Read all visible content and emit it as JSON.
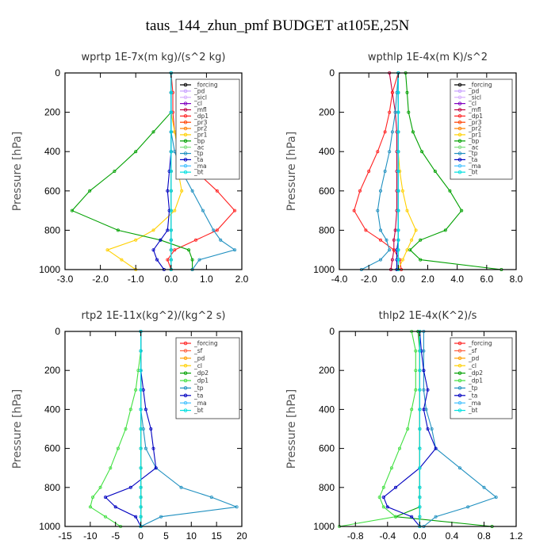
{
  "title": "taus_144_zhun_pmf  BUDGET at105E,25N",
  "chart_data": [
    {
      "type": "line",
      "title": "wprtp   1E-7x(m kg)/(s^2 kg)",
      "ylabel": "Pressure [hPa]",
      "xlim": [
        -3.0,
        2.0
      ],
      "ylim": [
        1000,
        0
      ],
      "xticks": [
        "-3.0",
        "-2.0",
        "-1.0",
        "0.0",
        "1.0",
        "2.0"
      ],
      "yticks": [
        "0",
        "200",
        "400",
        "600",
        "800",
        "1000"
      ],
      "y": [
        0,
        100,
        200,
        300,
        400,
        500,
        600,
        700,
        800,
        850,
        900,
        950,
        1000
      ],
      "series": [
        {
          "name": "_forcing",
          "color": "#000000",
          "values": [
            0,
            0,
            0,
            0,
            0,
            0,
            0,
            0,
            0,
            0,
            0,
            0,
            0
          ]
        },
        {
          "name": "_pd",
          "color": "#c8a0ff",
          "values": [
            0,
            0,
            0,
            0,
            0,
            0,
            0,
            0,
            0,
            0,
            0,
            0,
            0
          ]
        },
        {
          "name": "_sicl",
          "color": "#d8b0ff",
          "values": [
            0,
            0,
            0,
            0,
            0,
            0,
            0,
            0,
            0,
            0,
            0,
            0,
            0
          ]
        },
        {
          "name": "_cl",
          "color": "#8000c0",
          "values": [
            0,
            0,
            0,
            0,
            0,
            0,
            0,
            0,
            0,
            0,
            0,
            0,
            0
          ]
        },
        {
          "name": "_mfl",
          "color": "#c00040",
          "values": [
            0,
            0,
            0,
            0,
            0,
            0,
            0,
            0,
            0,
            0,
            0,
            0,
            0
          ]
        },
        {
          "name": "_dp1",
          "color": "#ff2020",
          "values": [
            0,
            0.05,
            0.05,
            0.1,
            0.3,
            0.7,
            1.3,
            1.8,
            1.3,
            0.7,
            0.1,
            -0.1,
            0
          ]
        },
        {
          "name": "_pr3",
          "color": "#ff4000",
          "values": [
            0,
            0,
            0,
            0,
            0,
            0,
            0,
            0,
            0,
            0,
            0,
            0,
            0
          ]
        },
        {
          "name": "_pr2",
          "color": "#ff8000",
          "values": [
            0,
            0,
            0,
            0,
            0,
            0,
            0,
            0,
            0,
            0,
            0,
            0,
            0
          ]
        },
        {
          "name": "_pr1",
          "color": "#ffd000",
          "values": [
            0,
            0,
            0,
            0.1,
            0.2,
            0.2,
            0.3,
            0.1,
            -0.5,
            -1.0,
            -1.8,
            -1.4,
            -1.0
          ]
        },
        {
          "name": "_bp",
          "color": "#00a000",
          "values": [
            0,
            0,
            0,
            -0.5,
            -1.0,
            -1.6,
            -2.3,
            -2.8,
            -1.5,
            -0.3,
            0.5,
            0.6,
            0.6
          ]
        },
        {
          "name": "_ac",
          "color": "#80e080",
          "values": [
            0,
            0,
            0,
            0,
            0,
            0,
            0,
            0,
            0,
            0,
            0,
            0,
            0
          ]
        },
        {
          "name": "_tp",
          "color": "#2090c0",
          "values": [
            0,
            0,
            0,
            0,
            0.1,
            0.3,
            0.6,
            0.9,
            1.2,
            1.4,
            1.8,
            0.8,
            0.6
          ]
        },
        {
          "name": "_ta",
          "color": "#0000c0",
          "values": [
            0,
            0,
            0,
            0,
            0,
            -0.05,
            -0.1,
            -0.05,
            -0.1,
            -0.3,
            -0.5,
            -0.4,
            -0.2
          ]
        },
        {
          "name": "_ma",
          "color": "#40c0ff",
          "values": [
            0,
            0,
            0,
            0,
            0,
            0,
            0,
            0,
            0,
            0,
            0,
            0,
            0
          ]
        },
        {
          "name": "_bt",
          "color": "#00e0e0",
          "values": [
            0,
            0,
            0,
            0,
            0,
            0,
            0,
            0,
            0,
            0,
            0,
            0,
            0
          ]
        }
      ]
    },
    {
      "type": "line",
      "title": "wpthlp   1E-4x(m K)/s^2",
      "ylabel": "Pressure [hPa]",
      "xlim": [
        -4.0,
        8.0
      ],
      "ylim": [
        1000,
        0
      ],
      "xticks": [
        "-4.0",
        "-2.0",
        "0.0",
        "2.0",
        "4.0",
        "6.0",
        "8.0"
      ],
      "yticks": [
        "0",
        "200",
        "400",
        "600",
        "800",
        "1000"
      ],
      "y": [
        0,
        100,
        200,
        300,
        400,
        500,
        600,
        700,
        800,
        850,
        900,
        950,
        1000
      ],
      "series": [
        {
          "name": "_forcing",
          "color": "#000000",
          "values": [
            0,
            0,
            0,
            0,
            0,
            0,
            0,
            0,
            0,
            0,
            0,
            0,
            0
          ]
        },
        {
          "name": "_pd",
          "color": "#c8a0ff",
          "values": [
            0,
            0,
            0,
            0,
            0,
            0,
            0,
            0,
            0,
            0,
            0,
            0,
            0
          ]
        },
        {
          "name": "_sicl",
          "color": "#d8b0ff",
          "values": [
            0,
            0,
            0,
            0,
            0,
            0,
            0,
            0,
            0,
            0,
            0,
            0,
            0
          ]
        },
        {
          "name": "_cl",
          "color": "#8000c0",
          "values": [
            0,
            0,
            0,
            0,
            0,
            0,
            0,
            0,
            0,
            0,
            0,
            0,
            0
          ]
        },
        {
          "name": "_mfl",
          "color": "#c00040",
          "values": [
            -0.6,
            -0.4,
            -0.2,
            -0.1,
            -0.1,
            -0.1,
            -0.1,
            -0.1,
            -0.2,
            -0.3,
            -0.3,
            -0.4,
            -0.5
          ]
        },
        {
          "name": "_dp1",
          "color": "#ff2020",
          "values": [
            0,
            -0.4,
            -0.6,
            -0.9,
            -1.4,
            -2.0,
            -2.6,
            -3.0,
            -2.2,
            -1.2,
            -0.3,
            0.1,
            0.2
          ]
        },
        {
          "name": "_pr3",
          "color": "#ff4000",
          "values": [
            0,
            0,
            0,
            0,
            0,
            0,
            0,
            0,
            0,
            0,
            0,
            0,
            0
          ]
        },
        {
          "name": "_pr2",
          "color": "#ff8000",
          "values": [
            0,
            0,
            0,
            0,
            0,
            0,
            0,
            0,
            0,
            0,
            0,
            0,
            0
          ]
        },
        {
          "name": "_pr1",
          "color": "#ffd000",
          "values": [
            0,
            0,
            0,
            0,
            0,
            0.1,
            0.3,
            0.6,
            1.2,
            0.9,
            0.6,
            0.3,
            0
          ]
        },
        {
          "name": "_bp",
          "color": "#00a000",
          "values": [
            0.5,
            0.6,
            0.7,
            1.0,
            1.6,
            2.5,
            3.5,
            4.3,
            3.2,
            1.5,
            0.8,
            1.5,
            7.0
          ]
        },
        {
          "name": "_ac",
          "color": "#80e080",
          "values": [
            0,
            0,
            0,
            0,
            0,
            0,
            0,
            0,
            0,
            0,
            0,
            0,
            0
          ]
        },
        {
          "name": "_tp",
          "color": "#2090c0",
          "values": [
            0,
            -0.1,
            -0.2,
            -0.4,
            -0.6,
            -0.9,
            -1.2,
            -1.4,
            -1.2,
            -0.8,
            -0.6,
            -1.2,
            -2.5
          ]
        },
        {
          "name": "_ta",
          "color": "#0000c0",
          "values": [
            0,
            0,
            0,
            0,
            0,
            0,
            0,
            0,
            0,
            0,
            -0.1,
            -0.1,
            -0.1
          ]
        },
        {
          "name": "_ma",
          "color": "#40c0ff",
          "values": [
            0,
            0,
            0,
            0,
            0,
            0,
            0,
            0,
            0,
            0,
            0,
            0,
            0
          ]
        },
        {
          "name": "_bt",
          "color": "#00e0e0",
          "values": [
            0,
            0,
            0,
            0,
            0,
            0,
            0,
            0,
            0,
            0,
            0,
            0,
            0
          ]
        }
      ]
    },
    {
      "type": "line",
      "title": "rtp2   1E-11x(kg^2)/(kg^2 s)",
      "ylabel": "Pressure [hPa]",
      "xlim": [
        -15,
        20
      ],
      "ylim": [
        1000,
        0
      ],
      "xticks": [
        "-15",
        "-10",
        "-5",
        "0",
        "5",
        "10",
        "15",
        "20"
      ],
      "yticks": [
        "0",
        "200",
        "400",
        "600",
        "800",
        "1000"
      ],
      "y": [
        0,
        100,
        200,
        300,
        400,
        500,
        600,
        700,
        800,
        850,
        900,
        950,
        1000
      ],
      "series": [
        {
          "name": "_forcing",
          "color": "#ff2020",
          "values": [
            0,
            0,
            0,
            0,
            0,
            0,
            0,
            0,
            0,
            0,
            0,
            0,
            0
          ]
        },
        {
          "name": "_sf",
          "color": "#ff6040",
          "values": [
            0,
            0,
            0,
            0,
            0,
            0,
            0,
            0,
            0,
            0,
            0,
            0,
            0
          ]
        },
        {
          "name": "_pd",
          "color": "#ffa000",
          "values": [
            0,
            0,
            0,
            0,
            0,
            0,
            0,
            0,
            0,
            0,
            0,
            0,
            0
          ]
        },
        {
          "name": "_cl",
          "color": "#ffd000",
          "values": [
            0,
            0,
            0,
            0,
            0,
            0,
            0,
            0,
            0,
            0,
            0,
            0,
            0
          ]
        },
        {
          "name": "_dp2",
          "color": "#00a000",
          "values": [
            0,
            0,
            0,
            0,
            0,
            0,
            0,
            0,
            0,
            0,
            0,
            0,
            0
          ]
        },
        {
          "name": "_dp1",
          "color": "#40e040",
          "values": [
            0,
            0,
            -0.5,
            -1,
            -2,
            -3,
            -4.5,
            -6,
            -8,
            -9.5,
            -10,
            -7,
            -4
          ]
        },
        {
          "name": "_tp",
          "color": "#2090c0",
          "values": [
            0,
            0,
            0,
            0,
            0,
            0.5,
            1,
            3,
            8,
            14,
            19,
            4,
            0
          ]
        },
        {
          "name": "_ta",
          "color": "#0000c0",
          "values": [
            0,
            0,
            0,
            0.5,
            1,
            2,
            2.5,
            3,
            -2,
            -7,
            -5,
            -1,
            0
          ]
        },
        {
          "name": "_ma",
          "color": "#40c0ff",
          "values": [
            0,
            0,
            0,
            0,
            0,
            0,
            0,
            0,
            0,
            0,
            0,
            0,
            0
          ]
        },
        {
          "name": "_bt",
          "color": "#00e0e0",
          "values": [
            0,
            0,
            0,
            0,
            0,
            0,
            0,
            0,
            0,
            0,
            0,
            0,
            0
          ]
        }
      ]
    },
    {
      "type": "line",
      "title": "thlp2   1E-4x(K^2)/s",
      "ylabel": "Pressure [hPa]",
      "xlim": [
        -1.0,
        1.2
      ],
      "ylim": [
        1000,
        0
      ],
      "xticks": [
        "-0.8",
        "-0.4",
        "0.0",
        "0.4",
        "0.8",
        "1.2"
      ],
      "yticks": [
        "0",
        "200",
        "400",
        "600",
        "800",
        "1000"
      ],
      "y": [
        0,
        100,
        200,
        300,
        400,
        500,
        600,
        700,
        800,
        850,
        900,
        950,
        1000
      ],
      "series": [
        {
          "name": "_forcing",
          "color": "#ff2020",
          "values": [
            0,
            0,
            0,
            0,
            0,
            0,
            0,
            0,
            0,
            0,
            0,
            0,
            0
          ]
        },
        {
          "name": "_sf",
          "color": "#ff6040",
          "values": [
            0,
            0,
            0,
            0,
            0,
            0,
            0,
            0,
            0,
            0,
            0,
            0,
            0
          ]
        },
        {
          "name": "_pd",
          "color": "#ffa000",
          "values": [
            0,
            0,
            0,
            0,
            0,
            0,
            0,
            0,
            0,
            0,
            0,
            0,
            0
          ]
        },
        {
          "name": "_cl",
          "color": "#ffd000",
          "values": [
            0,
            0,
            0,
            0,
            0,
            0,
            0,
            0,
            0,
            0,
            0,
            0,
            0
          ]
        },
        {
          "name": "_dp2",
          "color": "#00a000",
          "values": [
            -0.02,
            0,
            0,
            0,
            0,
            0,
            0,
            0,
            0,
            0,
            0,
            -0.3,
            0.9
          ]
        },
        {
          "name": "_dp1",
          "color": "#40e040",
          "values": [
            -0.1,
            -0.05,
            -0.05,
            -0.05,
            -0.1,
            -0.15,
            -0.25,
            -0.35,
            -0.45,
            -0.5,
            -0.45,
            -0.3,
            -1.0
          ]
        },
        {
          "name": "_tp",
          "color": "#2090c0",
          "values": [
            0.05,
            0.05,
            0.05,
            0.05,
            0.08,
            0.15,
            0.2,
            0.5,
            0.8,
            0.95,
            0.6,
            0.2,
            0.05
          ]
        },
        {
          "name": "_ta",
          "color": "#0000c0",
          "values": [
            0,
            0.02,
            0.05,
            0.1,
            0.05,
            0.1,
            0.2,
            0,
            -0.3,
            -0.45,
            -0.4,
            -0.1,
            0
          ]
        },
        {
          "name": "_ma",
          "color": "#40c0ff",
          "values": [
            0,
            0,
            0,
            0,
            0,
            0,
            0,
            0,
            0,
            0,
            0,
            0,
            0
          ]
        },
        {
          "name": "_bt",
          "color": "#00e0e0",
          "values": [
            0,
            0,
            0,
            0,
            0,
            0,
            0,
            0,
            0,
            0,
            0,
            0,
            0
          ]
        }
      ]
    }
  ]
}
